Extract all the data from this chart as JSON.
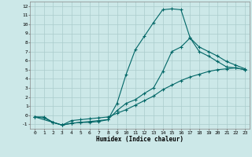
{
  "bg_color": "#cce8e8",
  "line_color": "#006666",
  "grid_color": "#aacccc",
  "xlabel": "Humidex (Indice chaleur)",
  "xlim": [
    -0.5,
    23.5
  ],
  "ylim": [
    -1.5,
    12.5
  ],
  "xticks": [
    0,
    1,
    2,
    3,
    4,
    5,
    6,
    7,
    8,
    9,
    10,
    11,
    12,
    13,
    14,
    15,
    16,
    17,
    18,
    19,
    20,
    21,
    22,
    23
  ],
  "yticks": [
    -1,
    0,
    1,
    2,
    3,
    4,
    5,
    6,
    7,
    8,
    9,
    10,
    11,
    12
  ],
  "line1_x": [
    0,
    1,
    2,
    3,
    4,
    5,
    6,
    7,
    8,
    9,
    10,
    11,
    12,
    13,
    14,
    15,
    16,
    17,
    18,
    19,
    20,
    21,
    22,
    23
  ],
  "line1_y": [
    -0.2,
    -0.3,
    -0.8,
    -1.1,
    -0.9,
    -0.8,
    -0.8,
    -0.7,
    -0.5,
    1.3,
    4.5,
    7.2,
    8.7,
    10.2,
    11.6,
    11.7,
    11.6,
    8.5,
    7.0,
    6.5,
    5.9,
    5.3,
    5.2,
    5.0
  ],
  "line2_x": [
    0,
    2,
    3,
    4,
    5,
    6,
    7,
    8,
    9,
    10,
    11,
    12,
    13,
    14,
    15,
    16,
    17,
    18,
    19,
    20,
    21,
    22,
    23
  ],
  "line2_y": [
    -0.2,
    -0.8,
    -1.1,
    -0.9,
    -0.8,
    -0.7,
    -0.6,
    -0.5,
    0.5,
    1.3,
    1.7,
    2.4,
    3.0,
    4.8,
    7.0,
    7.5,
    8.5,
    7.5,
    7.0,
    6.5,
    5.9,
    5.5,
    5.1
  ],
  "line3_x": [
    0,
    1,
    2,
    3,
    4,
    5,
    6,
    7,
    8,
    9,
    10,
    11,
    12,
    13,
    14,
    15,
    16,
    17,
    18,
    19,
    20,
    21,
    22,
    23
  ],
  "line3_y": [
    -0.2,
    -0.2,
    -0.8,
    -1.1,
    -0.6,
    -0.5,
    -0.4,
    -0.3,
    -0.2,
    0.2,
    0.6,
    1.1,
    1.6,
    2.1,
    2.8,
    3.3,
    3.8,
    4.2,
    4.5,
    4.8,
    5.0,
    5.1,
    5.2,
    5.0
  ]
}
